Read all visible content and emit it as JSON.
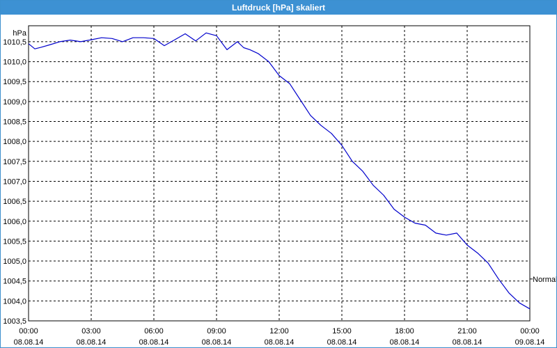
{
  "window": {
    "title": "Luftdruck [hPa] skaliert"
  },
  "chart_data": {
    "type": "line",
    "title": "Luftdruck [hPa] skaliert",
    "unit": "hPa",
    "ylim": [
      1003.5,
      1010.9
    ],
    "yticks": [
      "1003,5",
      "1004,0",
      "1004,5",
      "1005,0",
      "1005,5",
      "1006,0",
      "1006,5",
      "1007,0",
      "1007,5",
      "1008,0",
      "1008,5",
      "1009,0",
      "1009,5",
      "1010,0",
      "1010,5"
    ],
    "ytick_values": [
      1003.5,
      1004.0,
      1004.5,
      1005.0,
      1005.5,
      1006.0,
      1006.5,
      1007.0,
      1007.5,
      1008.0,
      1008.5,
      1009.0,
      1009.5,
      1010.0,
      1010.5
    ],
    "xticks": [
      {
        "time": "00:00",
        "date": "08.08.14"
      },
      {
        "time": "03:00",
        "date": "08.08.14"
      },
      {
        "time": "06:00",
        "date": "08.08.14"
      },
      {
        "time": "09:00",
        "date": "08.08.14"
      },
      {
        "time": "12:00",
        "date": "08.08.14"
      },
      {
        "time": "15:00",
        "date": "08.08.14"
      },
      {
        "time": "18:00",
        "date": "08.08.14"
      },
      {
        "time": "21:00",
        "date": "08.08.14"
      },
      {
        "time": "00:00",
        "date": "09.08.14"
      }
    ],
    "grid": true,
    "reference_label": "Normal",
    "reference_value": 1004.55,
    "line_color": "#0000cc",
    "series": [
      {
        "hours": [
          0,
          0.3,
          0.6,
          1,
          1.5,
          2,
          2.5,
          3,
          3.5,
          4,
          4.5,
          5,
          5.5,
          6,
          6.5,
          7,
          7.5,
          8,
          8.5,
          9,
          9.5,
          10,
          10.3,
          10.6,
          11,
          11.5,
          12,
          12.5,
          13,
          13.5,
          14,
          14.5,
          15,
          15.5,
          16,
          16.5,
          17,
          17.5,
          18,
          18.5,
          19,
          19.5,
          20,
          20.5,
          21,
          21.5,
          22,
          22.5,
          23,
          23.5,
          24
        ],
        "values": [
          1010.45,
          1010.32,
          1010.36,
          1010.42,
          1010.5,
          1010.54,
          1010.5,
          1010.55,
          1010.6,
          1010.58,
          1010.5,
          1010.6,
          1010.6,
          1010.58,
          1010.4,
          1010.55,
          1010.7,
          1010.52,
          1010.72,
          1010.65,
          1010.3,
          1010.5,
          1010.35,
          1010.3,
          1010.2,
          1010.0,
          1009.65,
          1009.45,
          1009.05,
          1008.65,
          1008.4,
          1008.2,
          1007.9,
          1007.5,
          1007.25,
          1006.9,
          1006.65,
          1006.3,
          1006.1,
          1005.95,
          1005.9,
          1005.7,
          1005.65,
          1005.7,
          1005.4,
          1005.2,
          1004.95,
          1004.55,
          1004.2,
          1003.95,
          1003.8
        ]
      }
    ]
  }
}
